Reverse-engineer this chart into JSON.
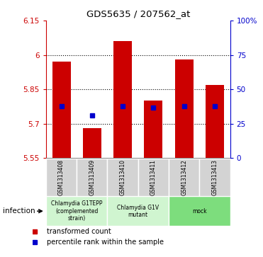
{
  "title": "GDS5635 / 207562_at",
  "samples": [
    "GSM1313408",
    "GSM1313409",
    "GSM1313410",
    "GSM1313411",
    "GSM1313412",
    "GSM1313413"
  ],
  "bar_bottoms": [
    5.55,
    5.55,
    5.55,
    5.55,
    5.55,
    5.55
  ],
  "bar_tops": [
    5.97,
    5.68,
    6.06,
    5.8,
    5.98,
    5.87
  ],
  "blue_dots": [
    5.775,
    5.735,
    5.775,
    5.77,
    5.775,
    5.775
  ],
  "ylim": [
    5.55,
    6.15
  ],
  "yticks": [
    5.55,
    5.7,
    5.85,
    6.0,
    6.15
  ],
  "ytick_labels": [
    "5.55",
    "5.7",
    "5.85",
    "6",
    "6.15"
  ],
  "right_yticks": [
    0,
    25,
    50,
    75,
    100
  ],
  "right_ytick_labels": [
    "0",
    "25",
    "50",
    "75",
    "100%"
  ],
  "bar_color": "#cc0000",
  "blue_color": "#0000cc",
  "left_axis_color": "#cc0000",
  "right_axis_color": "#0000cc",
  "grid_lines": [
    5.7,
    5.85,
    6.0
  ],
  "group_labels": [
    "Chlamydia G1TEPP\n(complemented\nstrain)",
    "Chlamydia G1V\nmutant",
    "mock"
  ],
  "group_colors_left": "#d0f5d0",
  "group_colors_mid": "#d0f5d0",
  "group_colors_right": "#7ddd7d",
  "group_ranges": [
    [
      0,
      2
    ],
    [
      2,
      4
    ],
    [
      4,
      6
    ]
  ],
  "factor_label": "infection",
  "legend_red": "transformed count",
  "legend_blue": "percentile rank within the sample",
  "bar_width": 0.6
}
